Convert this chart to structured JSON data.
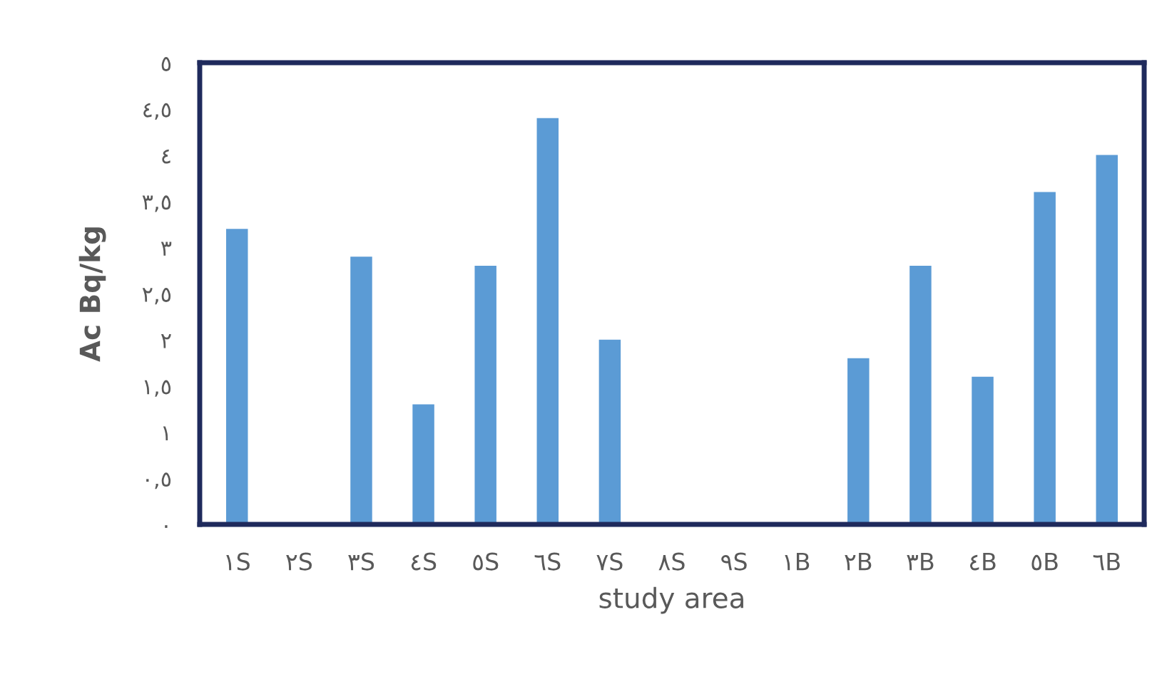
{
  "chart_data": {
    "type": "bar",
    "xlabel": "study area",
    "ylabel": "Ac Bq/kg",
    "categories": [
      "١S",
      "٢S",
      "٣S",
      "٤S",
      "٥S",
      "٦S",
      "٧S",
      "٨S",
      "٩S",
      "١B",
      "٢B",
      "٣B",
      "٤B",
      "٥B",
      "٦B"
    ],
    "values": [
      3.2,
      0,
      2.9,
      1.3,
      2.8,
      4.4,
      2.0,
      0,
      0,
      0,
      1.8,
      2.8,
      1.6,
      3.6,
      4.0
    ],
    "color": "#5b9bd5",
    "ylim": [
      0,
      5
    ],
    "yticks": [
      {
        "value": 0,
        "label": "٠"
      },
      {
        "value": 0.5,
        "label": "٠,٥"
      },
      {
        "value": 1,
        "label": "١"
      },
      {
        "value": 1.5,
        "label": "١,٥"
      },
      {
        "value": 2,
        "label": "٢"
      },
      {
        "value": 2.5,
        "label": "٢,٥"
      },
      {
        "value": 3,
        "label": "٣"
      },
      {
        "value": 3.5,
        "label": "٣,٥"
      },
      {
        "value": 4,
        "label": "٤"
      },
      {
        "value": 4.5,
        "label": "٤,٥"
      },
      {
        "value": 5,
        "label": "٥"
      }
    ],
    "grid": false,
    "legend": false
  }
}
